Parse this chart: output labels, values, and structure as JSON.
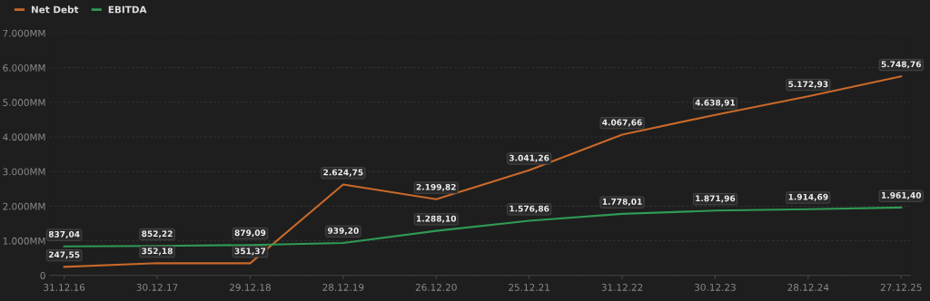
{
  "chart_data": {
    "type": "line",
    "categories": [
      "31.12.16",
      "30.12.17",
      "29.12.18",
      "28.12.19",
      "26.12.20",
      "25.12.21",
      "31.12.22",
      "30.12.23",
      "28.12.24",
      "27.12.25"
    ],
    "series": [
      {
        "name": "Net Debt",
        "color": "#c8692a",
        "values": [
          247.55,
          352.18,
          351.37,
          2624.75,
          2199.82,
          3041.26,
          4067.66,
          4638.91,
          5172.93,
          5748.76
        ],
        "value_labels": [
          "247,55",
          "352,18",
          "351,37",
          "2.624,75",
          "2.199,82",
          "3.041,26",
          "4.067,66",
          "4.638,91",
          "5.172,93",
          "5.748,76"
        ]
      },
      {
        "name": "EBITDA",
        "color": "#2f9a55",
        "values": [
          837.04,
          852.22,
          879.09,
          939.2,
          1288.1,
          1576.86,
          1778.01,
          1871.96,
          1914.69,
          1961.4
        ],
        "value_labels": [
          "837,04",
          "852,22",
          "879,09",
          "939,20",
          "1.288,10",
          "1.576,86",
          "1.778,01",
          "1.871,96",
          "1.914,69",
          "1.961,40"
        ]
      }
    ],
    "ylim": [
      0,
      7000
    ],
    "yticks": [
      0,
      {
        "value": 1000,
        "label": "1.000MM"
      },
      {
        "value": 2000,
        "label": "2.000MM"
      },
      {
        "value": 3000,
        "label": "3.000MM"
      },
      {
        "value": 4000,
        "label": "4.000MM"
      },
      {
        "value": 5000,
        "label": "5.000MM"
      },
      {
        "value": 6000,
        "label": "6.000MM"
      },
      {
        "value": 7000,
        "label": "7.000MM"
      }
    ],
    "grid": "y",
    "legend": "top left",
    "marker": "none",
    "line_style": "solid"
  }
}
